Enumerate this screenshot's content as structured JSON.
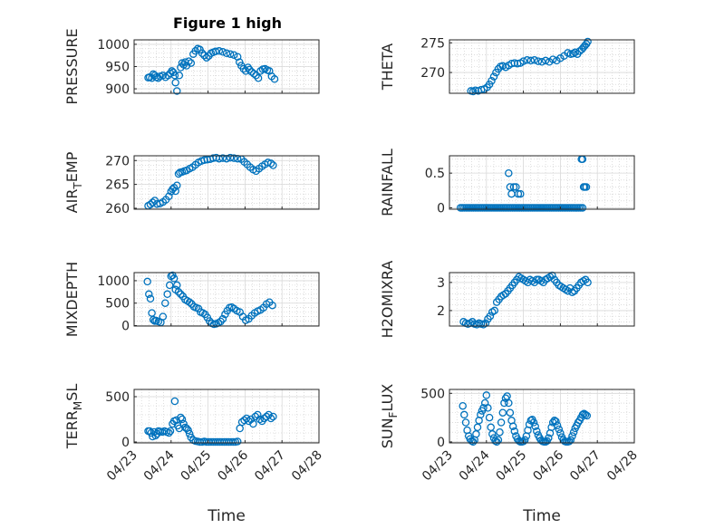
{
  "figure": {
    "title": "Figure 1 high",
    "marker_color": "#0072bd"
  },
  "chart_data": [
    {
      "type": "scatter",
      "ylabel": "PRESSURE",
      "yticks": [
        "900",
        "950",
        "1000"
      ],
      "ylim": [
        890,
        1010
      ],
      "xlim": [
        0,
        5
      ],
      "grid": true,
      "x": [
        0.38,
        0.42,
        0.48,
        0.52,
        0.56,
        0.6,
        0.65,
        0.7,
        0.78,
        0.85,
        0.92,
        0.98,
        1.02,
        1.06,
        1.1,
        1.12,
        1.16,
        1.22,
        1.26,
        1.3,
        1.34,
        1.38,
        1.42,
        1.48,
        1.54,
        1.6,
        1.66,
        1.72,
        1.78,
        1.84,
        1.9,
        1.96,
        2.02,
        2.08,
        2.14,
        2.2,
        2.3,
        2.4,
        2.5,
        2.6,
        2.7,
        2.8,
        2.85,
        2.9,
        2.96,
        3.02,
        3.08,
        3.12,
        3.18,
        3.24,
        3.3,
        3.36,
        3.42,
        3.48,
        3.54,
        3.6,
        3.66,
        3.72,
        3.8
      ],
      "y": [
        925,
        926,
        924,
        933,
        930,
        926,
        924,
        928,
        930,
        926,
        930,
        935,
        940,
        937,
        930,
        914,
        895,
        930,
        948,
        958,
        954,
        960,
        952,
        962,
        958,
        978,
        985,
        990,
        988,
        980,
        975,
        970,
        974,
        980,
        982,
        984,
        985,
        983,
        980,
        978,
        976,
        972,
        960,
        952,
        945,
        940,
        948,
        943,
        938,
        934,
        930,
        924,
        940,
        944,
        945,
        942,
        940,
        928,
        922
      ]
    },
    {
      "type": "scatter",
      "ylabel": "THETA",
      "yticks": [
        "270",
        "275"
      ],
      "ylim": [
        266.5,
        275.5
      ],
      "xlim": [
        0,
        5
      ],
      "grid": true,
      "x": [
        0.58,
        0.64,
        0.7,
        0.78,
        0.86,
        0.94,
        1.02,
        1.08,
        1.14,
        1.2,
        1.26,
        1.32,
        1.38,
        1.44,
        1.52,
        1.6,
        1.68,
        1.76,
        1.84,
        1.92,
        2.0,
        2.1,
        2.2,
        2.3,
        2.4,
        2.5,
        2.6,
        2.7,
        2.8,
        2.9,
        3.0,
        3.1,
        3.2,
        3.28,
        3.34,
        3.4,
        3.46,
        3.52,
        3.58,
        3.62,
        3.66,
        3.7,
        3.74
      ],
      "y": [
        266.9,
        266.8,
        267.0,
        266.9,
        267.1,
        267.2,
        267.5,
        268.0,
        268.6,
        269.3,
        270.0,
        270.6,
        271.0,
        271.1,
        270.9,
        271.2,
        271.5,
        271.6,
        271.5,
        271.6,
        271.9,
        272.1,
        272.0,
        272.1,
        271.9,
        271.8,
        272.0,
        271.8,
        272.2,
        272.0,
        272.4,
        272.8,
        273.3,
        273.1,
        273.2,
        273.4,
        273.1,
        273.6,
        273.9,
        274.2,
        274.5,
        274.8,
        275.2
      ]
    },
    {
      "type": "scatter",
      "ylabel": "AIR",
      "ylabel_sub": "T",
      "ylabel_rest": "EMP",
      "yticks": [
        "260",
        "265",
        "270"
      ],
      "ylim": [
        259.8,
        271
      ],
      "xlim": [
        0,
        5
      ],
      "grid": true,
      "x": [
        0.38,
        0.44,
        0.5,
        0.56,
        0.62,
        0.7,
        0.78,
        0.86,
        0.94,
        1.0,
        1.04,
        1.08,
        1.12,
        1.16,
        1.2,
        1.24,
        1.3,
        1.36,
        1.42,
        1.5,
        1.58,
        1.66,
        1.74,
        1.82,
        1.9,
        1.98,
        2.06,
        2.14,
        2.22,
        2.3,
        2.4,
        2.5,
        2.6,
        2.7,
        2.8,
        2.9,
        2.98,
        3.06,
        3.14,
        3.22,
        3.3,
        3.38,
        3.46,
        3.54,
        3.62,
        3.7,
        3.76
      ],
      "y": [
        260.5,
        260.8,
        261.2,
        261.6,
        260.9,
        261.0,
        261.3,
        261.8,
        262.5,
        263.5,
        264.0,
        264.3,
        263.6,
        264.8,
        267.2,
        267.5,
        267.6,
        267.8,
        267.9,
        268.3,
        268.6,
        269.1,
        269.6,
        269.9,
        270.1,
        270.2,
        270.3,
        270.5,
        270.6,
        270.4,
        270.5,
        270.4,
        270.6,
        270.5,
        270.4,
        270.3,
        269.7,
        269.2,
        268.6,
        268.1,
        267.8,
        268.3,
        268.8,
        269.2,
        269.6,
        269.4,
        269.0
      ]
    },
    {
      "type": "scatter",
      "ylabel": "RAINFALL",
      "yticks": [
        "0",
        "0.5"
      ],
      "ylim": [
        -0.02,
        0.75
      ],
      "xlim": [
        0,
        5
      ],
      "grid": true,
      "x": [
        0.3,
        0.35,
        0.4,
        0.45,
        0.5,
        0.55,
        0.6,
        0.65,
        0.7,
        0.75,
        0.8,
        0.85,
        0.9,
        0.95,
        1.0,
        1.05,
        1.1,
        1.15,
        1.2,
        1.25,
        1.3,
        1.35,
        1.4,
        1.45,
        1.5,
        1.55,
        1.6,
        1.65,
        1.7,
        1.75,
        1.8,
        1.85,
        1.9,
        1.95,
        2.0,
        2.05,
        2.1,
        2.15,
        2.2,
        2.25,
        2.3,
        2.35,
        2.4,
        2.45,
        2.5,
        2.55,
        2.6,
        2.65,
        2.7,
        2.75,
        2.8,
        2.85,
        2.9,
        2.95,
        3.0,
        3.05,
        3.1,
        3.15,
        3.2,
        3.25,
        3.3,
        3.35,
        3.4,
        3.45,
        3.5,
        3.55,
        3.6,
        1.6,
        1.64,
        1.68,
        1.74,
        1.8,
        1.86,
        1.92,
        3.57,
        3.6,
        3.63,
        3.66,
        3.7
      ],
      "y": [
        0,
        0,
        0,
        0,
        0,
        0,
        0,
        0,
        0,
        0,
        0,
        0,
        0,
        0,
        0,
        0,
        0,
        0,
        0,
        0,
        0,
        0,
        0,
        0,
        0,
        0,
        0,
        0,
        0,
        0,
        0,
        0,
        0,
        0,
        0,
        0,
        0,
        0,
        0,
        0,
        0,
        0,
        0,
        0,
        0,
        0,
        0,
        0,
        0,
        0,
        0,
        0,
        0,
        0,
        0,
        0,
        0,
        0,
        0,
        0,
        0,
        0,
        0,
        0,
        0,
        0,
        0,
        0.5,
        0.3,
        0.2,
        0.3,
        0.3,
        0.2,
        0.2,
        0.7,
        0.7,
        0.3,
        0.3,
        0.3
      ]
    },
    {
      "type": "scatter",
      "ylabel": "MIXDEPTH",
      "yticks": [
        "0",
        "500",
        "1000"
      ],
      "ylim": [
        -10,
        1180
      ],
      "xlim": [
        0,
        5
      ],
      "grid": true,
      "x": [
        0.36,
        0.4,
        0.44,
        0.48,
        0.52,
        0.56,
        0.6,
        0.66,
        0.72,
        0.78,
        0.84,
        0.9,
        0.96,
        1.0,
        1.04,
        1.08,
        1.12,
        1.16,
        1.2,
        1.26,
        1.32,
        1.38,
        1.44,
        1.5,
        1.56,
        1.62,
        1.68,
        1.74,
        1.8,
        1.86,
        1.92,
        1.98,
        2.04,
        2.1,
        2.16,
        2.22,
        2.28,
        2.34,
        2.4,
        2.46,
        2.52,
        2.58,
        2.64,
        2.7,
        2.78,
        2.86,
        2.94,
        3.02,
        3.1,
        3.18,
        3.26,
        3.34,
        3.42,
        3.5,
        3.58,
        3.66,
        3.74
      ],
      "y": [
        980,
        700,
        600,
        280,
        130,
        100,
        110,
        90,
        70,
        200,
        500,
        700,
        900,
        1100,
        1120,
        1050,
        800,
        900,
        750,
        700,
        650,
        580,
        550,
        520,
        480,
        420,
        400,
        380,
        300,
        280,
        250,
        180,
        100,
        50,
        30,
        40,
        60,
        90,
        150,
        250,
        330,
        400,
        410,
        380,
        330,
        300,
        200,
        120,
        150,
        220,
        280,
        320,
        350,
        400,
        480,
        520,
        450
      ]
    },
    {
      "type": "scatter",
      "ylabel": "H2OMIXRA",
      "yticks": [
        "2",
        "3"
      ],
      "ylim": [
        1.45,
        3.35
      ],
      "xlim": [
        0,
        5
      ],
      "grid": true,
      "x": [
        0.38,
        0.44,
        0.5,
        0.56,
        0.62,
        0.68,
        0.74,
        0.8,
        0.86,
        0.92,
        0.98,
        1.04,
        1.1,
        1.16,
        1.22,
        1.28,
        1.34,
        1.4,
        1.46,
        1.52,
        1.58,
        1.64,
        1.7,
        1.76,
        1.82,
        1.88,
        1.94,
        2.0,
        2.06,
        2.12,
        2.18,
        2.24,
        2.3,
        2.36,
        2.42,
        2.48,
        2.54,
        2.6,
        2.66,
        2.72,
        2.78,
        2.84,
        2.9,
        2.96,
        3.02,
        3.08,
        3.14,
        3.2,
        3.26,
        3.32,
        3.38,
        3.44,
        3.5,
        3.56,
        3.62,
        3.68,
        3.74
      ],
      "y": [
        1.6,
        1.55,
        1.52,
        1.55,
        1.6,
        1.52,
        1.5,
        1.55,
        1.52,
        1.5,
        1.55,
        1.7,
        1.8,
        1.95,
        2.0,
        2.3,
        2.4,
        2.5,
        2.55,
        2.6,
        2.7,
        2.8,
        2.9,
        3.0,
        3.1,
        3.2,
        3.15,
        3.1,
        3.05,
        3.0,
        3.1,
        3.05,
        3.0,
        3.1,
        3.1,
        3.05,
        3.0,
        3.1,
        3.15,
        3.2,
        3.25,
        3.1,
        3.0,
        2.9,
        2.85,
        2.8,
        2.75,
        2.7,
        2.8,
        2.65,
        2.7,
        2.8,
        2.9,
        3.0,
        3.05,
        3.1,
        3.0
      ]
    },
    {
      "type": "scatter",
      "ylabel": "TERR",
      "ylabel_sub": "M",
      "ylabel_rest": "SL",
      "yticks": [
        "0",
        "500"
      ],
      "ylim": [
        -10,
        580
      ],
      "xlim": [
        0,
        5
      ],
      "grid": true,
      "xticks": [
        "04/23",
        "04/24",
        "04/25",
        "04/26",
        "04/27",
        "04/28"
      ],
      "xlabel": "Time",
      "x": [
        0.38,
        0.42,
        0.46,
        0.5,
        0.54,
        0.58,
        0.62,
        0.66,
        0.7,
        0.76,
        0.82,
        0.88,
        0.94,
        0.98,
        1.04,
        1.08,
        1.1,
        1.14,
        1.18,
        1.22,
        1.26,
        1.3,
        1.34,
        1.38,
        1.42,
        1.46,
        1.5,
        1.54,
        1.6,
        1.66,
        1.72,
        1.78,
        1.84,
        1.9,
        1.96,
        2.02,
        2.08,
        2.14,
        2.2,
        2.26,
        2.32,
        2.38,
        2.44,
        2.5,
        2.56,
        2.62,
        2.68,
        2.74,
        2.8,
        2.86,
        2.92,
        2.98,
        3.04,
        3.1,
        3.16,
        3.22,
        3.28,
        3.34,
        3.4,
        3.46,
        3.52,
        3.58,
        3.64,
        3.7,
        3.76
      ],
      "y": [
        120,
        120,
        100,
        60,
        110,
        70,
        90,
        120,
        115,
        110,
        120,
        110,
        100,
        120,
        200,
        230,
        450,
        240,
        180,
        150,
        270,
        250,
        200,
        160,
        150,
        130,
        90,
        50,
        20,
        10,
        5,
        0,
        0,
        5,
        0,
        0,
        0,
        0,
        0,
        0,
        0,
        0,
        0,
        0,
        0,
        0,
        0,
        0,
        5,
        150,
        220,
        240,
        260,
        230,
        250,
        200,
        280,
        300,
        250,
        230,
        260,
        280,
        300,
        260,
        280
      ]
    },
    {
      "type": "scatter",
      "ylabel": "SUN",
      "ylabel_sub": "F",
      "ylabel_rest": "LUX",
      "yticks": [
        "0",
        "500"
      ],
      "ylim": [
        -10,
        540
      ],
      "xlim": [
        0,
        5
      ],
      "grid": true,
      "xticks": [
        "04/23",
        "04/24",
        "04/25",
        "04/26",
        "04/27",
        "04/28"
      ],
      "xlabel": "Time",
      "x": [
        0.36,
        0.4,
        0.44,
        0.48,
        0.52,
        0.56,
        0.6,
        0.64,
        0.68,
        0.72,
        0.76,
        0.8,
        0.84,
        0.88,
        0.92,
        0.96,
        1.0,
        1.04,
        1.08,
        1.12,
        1.16,
        1.2,
        1.24,
        1.28,
        1.32,
        1.36,
        1.4,
        1.44,
        1.48,
        1.52,
        1.56,
        1.6,
        1.64,
        1.68,
        1.72,
        1.76,
        1.8,
        1.84,
        1.88,
        1.92,
        1.96,
        2.0,
        2.04,
        2.08,
        2.12,
        2.16,
        2.2,
        2.24,
        2.28,
        2.32,
        2.36,
        2.4,
        2.44,
        2.48,
        2.52,
        2.56,
        2.6,
        2.64,
        2.68,
        2.72,
        2.76,
        2.8,
        2.84,
        2.88,
        2.92,
        2.96,
        3.0,
        3.04,
        3.08,
        3.12,
        3.16,
        3.2,
        3.24,
        3.28,
        3.32,
        3.36,
        3.4,
        3.44,
        3.48,
        3.52,
        3.56,
        3.6,
        3.64,
        3.68,
        3.72
      ],
      "y": [
        370,
        280,
        200,
        120,
        60,
        30,
        10,
        0,
        20,
        80,
        150,
        220,
        280,
        320,
        350,
        400,
        480,
        350,
        250,
        150,
        80,
        40,
        10,
        0,
        20,
        100,
        200,
        300,
        400,
        450,
        470,
        400,
        300,
        220,
        160,
        110,
        60,
        30,
        10,
        0,
        0,
        5,
        20,
        60,
        120,
        180,
        220,
        230,
        200,
        160,
        110,
        70,
        40,
        15,
        5,
        0,
        0,
        10,
        40,
        90,
        150,
        200,
        220,
        210,
        170,
        130,
        90,
        50,
        20,
        5,
        0,
        0,
        5,
        20,
        60,
        100,
        140,
        170,
        200,
        220,
        250,
        280,
        290,
        280,
        270
      ]
    }
  ]
}
